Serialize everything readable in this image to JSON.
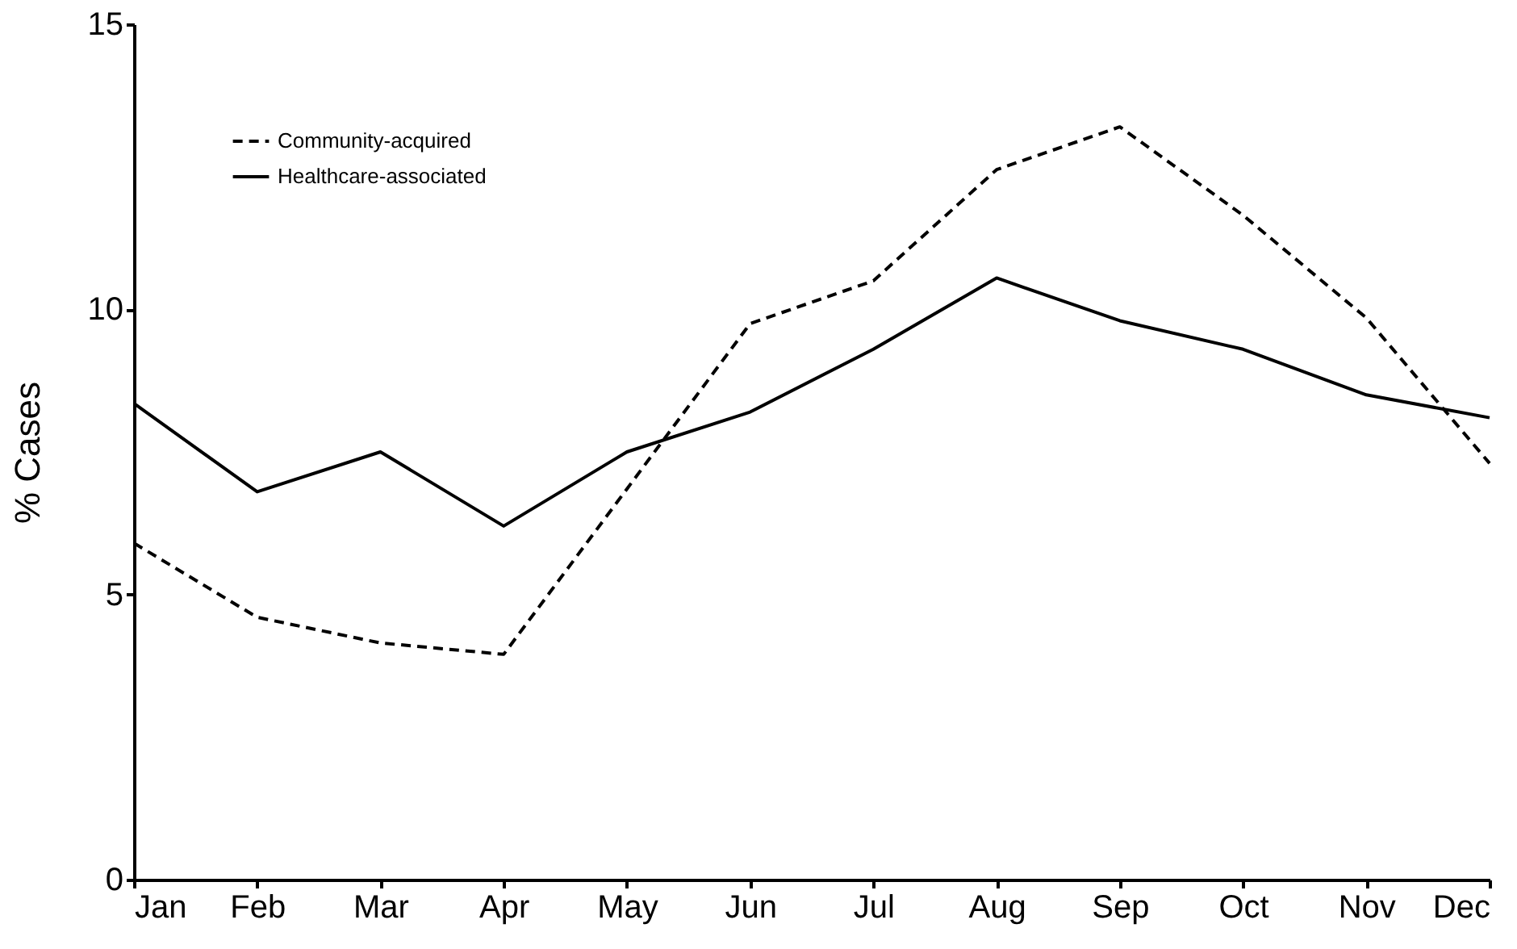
{
  "chart_data": {
    "type": "line",
    "ylabel": "% Cases",
    "categories": [
      "Jan",
      "Feb",
      "Mar",
      "Apr",
      "May",
      "Jun",
      "Jul",
      "Aug",
      "Sep",
      "Oct",
      "Nov",
      "Dec"
    ],
    "series": [
      {
        "name": "Community-acquired",
        "color": "#000000",
        "line_style": "dashed",
        "values": [
          5.9,
          4.6,
          4.15,
          3.95,
          6.85,
          9.75,
          10.5,
          12.45,
          13.2,
          11.65,
          9.85,
          7.3
        ]
      },
      {
        "name": "Healthcare-associated",
        "color": "#000000",
        "line_style": "solid",
        "values": [
          8.35,
          6.8,
          7.5,
          6.2,
          7.5,
          8.2,
          9.3,
          10.55,
          9.8,
          9.3,
          8.5,
          8.1
        ]
      }
    ],
    "ylim": [
      0,
      15
    ],
    "yticks": [
      0,
      5,
      10,
      15
    ],
    "grid": false,
    "legend": "top left",
    "marker": "none"
  }
}
